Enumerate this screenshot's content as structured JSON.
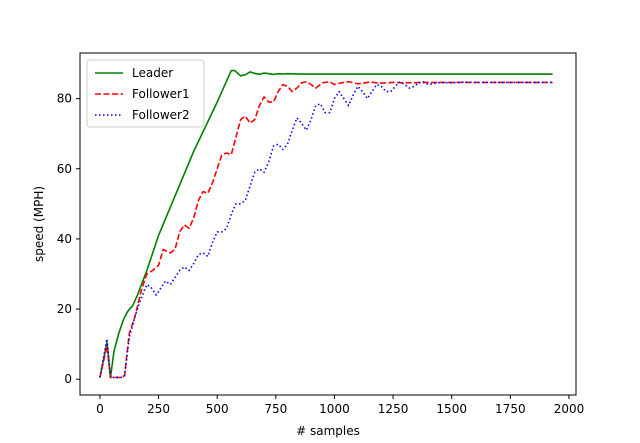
{
  "chart_data": {
    "type": "line",
    "xlabel": "# samples",
    "ylabel": "speed (MPH)",
    "xlim": [
      -85,
      2030
    ],
    "ylim": [
      -4.5,
      93
    ],
    "x_ticks": [
      0,
      250,
      500,
      750,
      1000,
      1250,
      1500,
      1750,
      2000
    ],
    "y_ticks": [
      0,
      20,
      40,
      60,
      80
    ],
    "grid": false,
    "legend_position": "top-left",
    "series": [
      {
        "name": "Leader",
        "color": "#008000",
        "dash": "solid",
        "points": [
          [
            0,
            0.5
          ],
          [
            30,
            10.5
          ],
          [
            45,
            0.5
          ],
          [
            60,
            8
          ],
          [
            80,
            13
          ],
          [
            100,
            17
          ],
          [
            120,
            19.5
          ],
          [
            140,
            21
          ],
          [
            160,
            24
          ],
          [
            200,
            31
          ],
          [
            250,
            41
          ],
          [
            300,
            49
          ],
          [
            350,
            57
          ],
          [
            400,
            65
          ],
          [
            450,
            72
          ],
          [
            500,
            79
          ],
          [
            540,
            85
          ],
          [
            560,
            88
          ],
          [
            575,
            88
          ],
          [
            600,
            86.5
          ],
          [
            620,
            86.8
          ],
          [
            640,
            87.6
          ],
          [
            660,
            87.2
          ],
          [
            680,
            86.9
          ],
          [
            700,
            87.3
          ],
          [
            720,
            87.1
          ],
          [
            740,
            86.9
          ],
          [
            760,
            87.1
          ],
          [
            780,
            87.0
          ],
          [
            800,
            87.1
          ],
          [
            850,
            87.0
          ],
          [
            1000,
            87.0
          ],
          [
            1500,
            87.0
          ],
          [
            1930,
            87.0
          ]
        ]
      },
      {
        "name": "Follower1",
        "color": "#ff0000",
        "dash": "dashed",
        "points": [
          [
            0,
            0.5
          ],
          [
            30,
            9.5
          ],
          [
            45,
            0.5
          ],
          [
            90,
            0.5
          ],
          [
            105,
            1
          ],
          [
            125,
            13
          ],
          [
            150,
            18
          ],
          [
            175,
            25
          ],
          [
            200,
            30
          ],
          [
            225,
            31
          ],
          [
            250,
            32.5
          ],
          [
            270,
            37
          ],
          [
            300,
            36
          ],
          [
            320,
            37
          ],
          [
            340,
            42
          ],
          [
            360,
            44
          ],
          [
            380,
            43
          ],
          [
            400,
            46
          ],
          [
            420,
            51
          ],
          [
            440,
            53.5
          ],
          [
            460,
            53
          ],
          [
            480,
            56
          ],
          [
            500,
            60
          ],
          [
            520,
            64
          ],
          [
            540,
            64.5
          ],
          [
            560,
            64
          ],
          [
            580,
            69
          ],
          [
            600,
            74
          ],
          [
            620,
            75
          ],
          [
            640,
            73
          ],
          [
            660,
            74
          ],
          [
            680,
            78
          ],
          [
            700,
            80.5
          ],
          [
            720,
            79
          ],
          [
            740,
            79
          ],
          [
            760,
            82
          ],
          [
            780,
            84
          ],
          [
            800,
            83.5
          ],
          [
            820,
            82
          ],
          [
            840,
            83
          ],
          [
            860,
            84.5
          ],
          [
            880,
            84.8
          ],
          [
            900,
            84
          ],
          [
            920,
            83
          ],
          [
            950,
            84.5
          ],
          [
            980,
            84.8
          ],
          [
            1000,
            84
          ],
          [
            1030,
            84.5
          ],
          [
            1060,
            84.8
          ],
          [
            1100,
            84.2
          ],
          [
            1150,
            84.7
          ],
          [
            1200,
            84.4
          ],
          [
            1250,
            84.6
          ],
          [
            1300,
            84.5
          ],
          [
            1400,
            84.6
          ],
          [
            1500,
            84.6
          ],
          [
            1930,
            84.6
          ]
        ]
      },
      {
        "name": "Follower2",
        "color": "#0000ff",
        "dash": "dotted",
        "points": [
          [
            0,
            0.5
          ],
          [
            30,
            11.5
          ],
          [
            45,
            0.5
          ],
          [
            90,
            0.5
          ],
          [
            105,
            1
          ],
          [
            125,
            12
          ],
          [
            150,
            18
          ],
          [
            175,
            23
          ],
          [
            200,
            27
          ],
          [
            220,
            26
          ],
          [
            240,
            24
          ],
          [
            260,
            26
          ],
          [
            280,
            28
          ],
          [
            300,
            27
          ],
          [
            320,
            29
          ],
          [
            340,
            31
          ],
          [
            360,
            32
          ],
          [
            380,
            31
          ],
          [
            400,
            33
          ],
          [
            420,
            35.5
          ],
          [
            440,
            36
          ],
          [
            460,
            35
          ],
          [
            480,
            39
          ],
          [
            500,
            42
          ],
          [
            520,
            42
          ],
          [
            540,
            43
          ],
          [
            560,
            47
          ],
          [
            580,
            50
          ],
          [
            600,
            50
          ],
          [
            620,
            51
          ],
          [
            640,
            55
          ],
          [
            660,
            59
          ],
          [
            680,
            60
          ],
          [
            700,
            59
          ],
          [
            720,
            62
          ],
          [
            740,
            66.5
          ],
          [
            760,
            67
          ],
          [
            780,
            65.5
          ],
          [
            800,
            67
          ],
          [
            820,
            71
          ],
          [
            840,
            74.5
          ],
          [
            860,
            73
          ],
          [
            880,
            71
          ],
          [
            900,
            74
          ],
          [
            920,
            78
          ],
          [
            940,
            78.5
          ],
          [
            960,
            76
          ],
          [
            980,
            76
          ],
          [
            1000,
            80
          ],
          [
            1020,
            82
          ],
          [
            1040,
            80
          ],
          [
            1060,
            78
          ],
          [
            1080,
            81
          ],
          [
            1100,
            83.5
          ],
          [
            1120,
            82
          ],
          [
            1140,
            80
          ],
          [
            1160,
            82
          ],
          [
            1180,
            84
          ],
          [
            1200,
            83.5
          ],
          [
            1220,
            82
          ],
          [
            1240,
            82
          ],
          [
            1260,
            83.5
          ],
          [
            1280,
            84.8
          ],
          [
            1300,
            84
          ],
          [
            1320,
            83
          ],
          [
            1340,
            83.5
          ],
          [
            1360,
            84.5
          ],
          [
            1380,
            84.8
          ],
          [
            1400,
            84
          ],
          [
            1450,
            84.6
          ],
          [
            1500,
            84.5
          ],
          [
            1550,
            84.7
          ],
          [
            1600,
            84.6
          ],
          [
            1930,
            84.6
          ]
        ]
      }
    ]
  }
}
